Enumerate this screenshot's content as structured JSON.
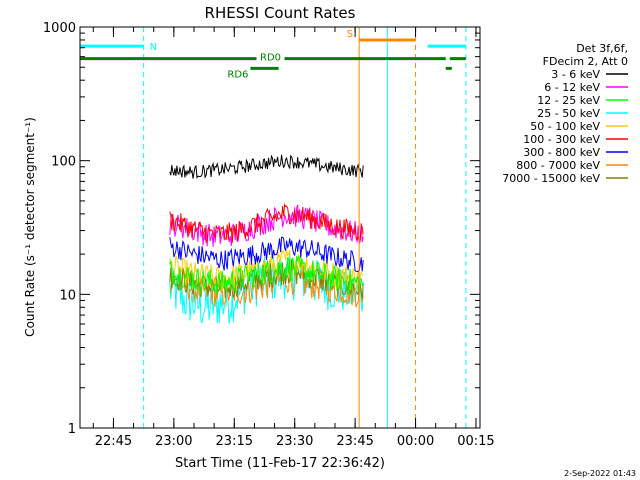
{
  "chart_data": {
    "type": "line",
    "title": "RHESSI Count Rates",
    "xlabel": "Start Time (11-Feb-17 22:36:42)",
    "ylabel": "Count Rate (s⁻¹ detector segment⁻¹)",
    "y_scale": "log",
    "ylim": [
      1,
      1000
    ],
    "xlim": [
      "22:36:42",
      "00:16:00"
    ],
    "x_ticks": [
      "22:45",
      "23:00",
      "23:15",
      "23:30",
      "23:45",
      "00:00",
      "00:15"
    ],
    "y_ticks": [
      "1",
      "10",
      "100",
      "1000"
    ],
    "grid": false,
    "legend_placement": "right, outside plot",
    "legend_header": [
      "Det 3f,6f,",
      "FDecim 2, Att 0"
    ],
    "series": [
      {
        "name": "3 - 6 keV",
        "color": "#000000",
        "points": [
          [
            "22:59",
            85
          ],
          [
            "23:05",
            82
          ],
          [
            "23:15",
            88
          ],
          [
            "23:20",
            93
          ],
          [
            "23:27",
            100
          ],
          [
            "23:33",
            96
          ],
          [
            "23:40",
            88
          ],
          [
            "23:47",
            83
          ]
        ]
      },
      {
        "name": "6 - 12 keV",
        "color": "#ff00ff",
        "points": [
          [
            "22:59",
            34
          ],
          [
            "23:05",
            30
          ],
          [
            "23:10",
            27
          ],
          [
            "23:15",
            28
          ],
          [
            "23:22",
            34
          ],
          [
            "23:28",
            40
          ],
          [
            "23:33",
            37
          ],
          [
            "23:40",
            31
          ],
          [
            "23:47",
            28
          ]
        ]
      },
      {
        "name": "12 - 25 keV",
        "color": "#00ff00",
        "points": [
          [
            "22:59",
            15
          ],
          [
            "23:05",
            13
          ],
          [
            "23:12",
            12
          ],
          [
            "23:20",
            14
          ],
          [
            "23:28",
            16
          ],
          [
            "23:33",
            15
          ],
          [
            "23:40",
            13
          ],
          [
            "23:47",
            12
          ]
        ]
      },
      {
        "name": "25 - 50 keV",
        "color": "#00ffff",
        "points": [
          [
            "22:59",
            11
          ],
          [
            "23:03",
            9
          ],
          [
            "23:08",
            8
          ],
          [
            "23:14",
            9
          ],
          [
            "23:20",
            12
          ],
          [
            "23:28",
            14
          ],
          [
            "23:33",
            13
          ],
          [
            "23:40",
            11
          ],
          [
            "23:47",
            10
          ]
        ]
      },
      {
        "name": "50 - 100 keV",
        "color": "#ffcc00",
        "points": [
          [
            "22:59",
            16
          ],
          [
            "23:05",
            14
          ],
          [
            "23:12",
            13
          ],
          [
            "23:20",
            15
          ],
          [
            "23:28",
            18
          ],
          [
            "23:33",
            17
          ],
          [
            "23:40",
            14
          ],
          [
            "23:47",
            13
          ]
        ]
      },
      {
        "name": "100 - 300 keV",
        "color": "#ff0000",
        "points": [
          [
            "22:59",
            36
          ],
          [
            "23:05",
            31
          ],
          [
            "23:10",
            28
          ],
          [
            "23:15",
            29
          ],
          [
            "23:22",
            35
          ],
          [
            "23:28",
            41
          ],
          [
            "23:33",
            38
          ],
          [
            "23:40",
            32
          ],
          [
            "23:47",
            29
          ]
        ]
      },
      {
        "name": "300 - 800 keV",
        "color": "#0000ff",
        "points": [
          [
            "22:59",
            23
          ],
          [
            "23:05",
            20
          ],
          [
            "23:12",
            18
          ],
          [
            "23:20",
            20
          ],
          [
            "23:28",
            23
          ],
          [
            "23:33",
            22
          ],
          [
            "23:40",
            19
          ],
          [
            "23:47",
            17
          ]
        ]
      },
      {
        "name": "800 - 7000 keV",
        "color": "#ff8800",
        "points": [
          [
            "22:59",
            13
          ],
          [
            "23:05",
            11
          ],
          [
            "23:12",
            10
          ],
          [
            "23:20",
            11
          ],
          [
            "23:28",
            13
          ],
          [
            "23:33",
            12
          ],
          [
            "23:40",
            11
          ],
          [
            "23:47",
            10
          ]
        ]
      },
      {
        "name": "7000 - 15000 keV",
        "color": "#808000",
        "points": [
          [
            "22:59",
            14
          ],
          [
            "23:05",
            12
          ],
          [
            "23:12",
            11
          ],
          [
            "23:20",
            13
          ],
          [
            "23:28",
            15
          ],
          [
            "23:33",
            14
          ],
          [
            "23:40",
            12
          ],
          [
            "23:47",
            11
          ]
        ]
      }
    ],
    "annotations": {
      "flags": [
        {
          "label": "N",
          "color": "#00ffff",
          "level": 720,
          "segments": [
            [
              "22:36:42",
              "22:52:30"
            ],
            [
              "00:03:00",
              "00:12:30"
            ]
          ]
        },
        {
          "label": "S",
          "color": "#ff8800",
          "level": 800,
          "segments": [
            [
              "23:46",
              "00:00:00"
            ]
          ]
        },
        {
          "label": "RD0",
          "color": "#008000",
          "level": 580,
          "segments": [
            [
              "22:36:42",
              "00:07:30"
            ],
            [
              "00:08:30",
              "00:12:30"
            ]
          ]
        },
        {
          "label": "RD6",
          "color": "#008000",
          "level": 490,
          "segments": [
            [
              "23:19",
              "23:26"
            ],
            [
              "00:07:30",
              "00:09:00"
            ]
          ]
        }
      ],
      "vlines": [
        {
          "x": "22:36:42",
          "color": "#00ffff",
          "style": "solid"
        },
        {
          "x": "22:52:30",
          "color": "#00ffff",
          "style": "dashed"
        },
        {
          "x": "23:46",
          "color": "#ff8800",
          "style": "solid"
        },
        {
          "x": "23:53",
          "color": "#00ffff",
          "style": "solid"
        },
        {
          "x": "00:00:00",
          "color": "#ff8800",
          "style": "dashed"
        },
        {
          "x": "00:12:30",
          "color": "#00ffff",
          "style": "dashed"
        }
      ]
    }
  },
  "footer": {
    "timestamp": "2-Sep-2022 01:43"
  }
}
